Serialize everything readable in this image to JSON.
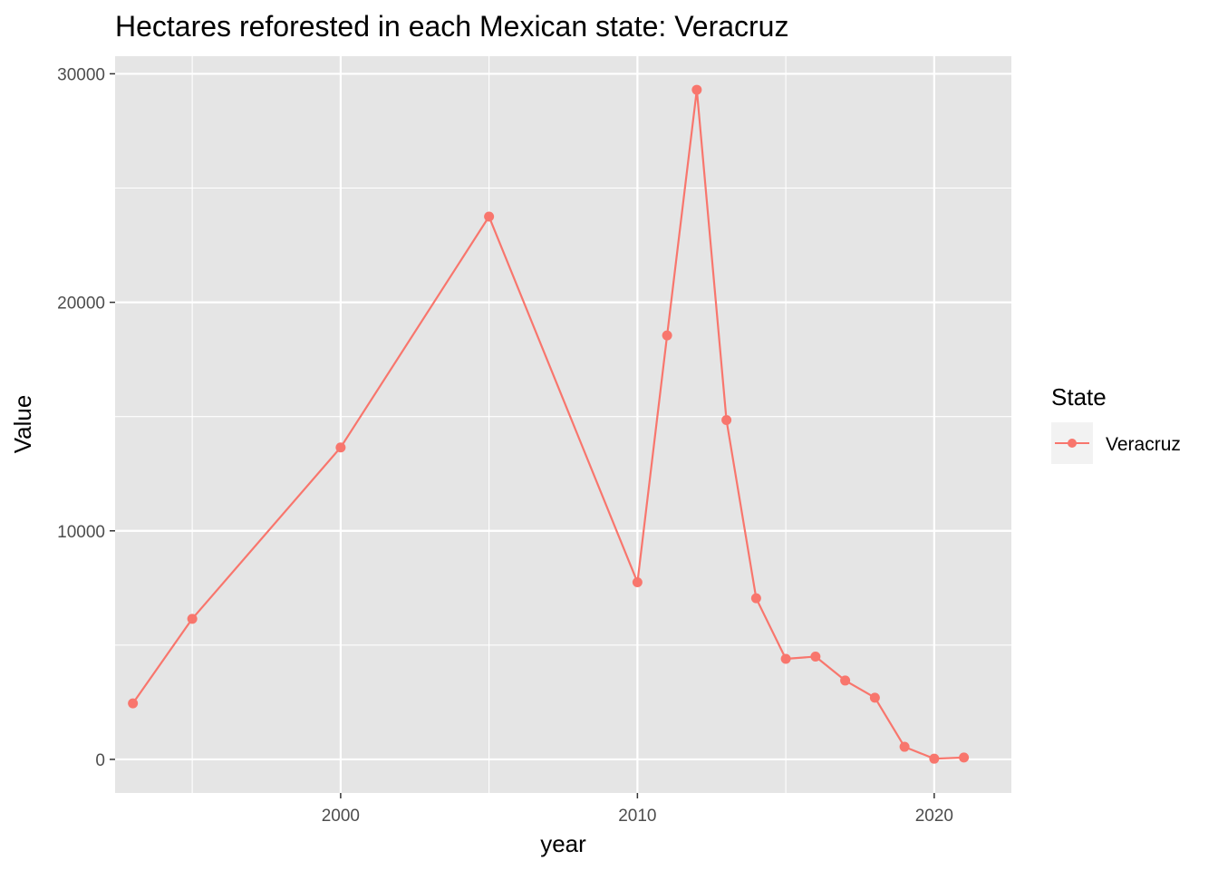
{
  "chart_data": {
    "type": "line",
    "title": "Hectares reforested in each Mexican state: Veracruz",
    "xlabel": "year",
    "ylabel": "Value",
    "xlim": [
      1992.4,
      2022.6
    ],
    "ylim": [
      -1470,
      30770
    ],
    "x_ticks": [
      2000,
      2010,
      2020
    ],
    "x_tick_labels": [
      "2000",
      "2010",
      "2020"
    ],
    "x_minor_ticks": [
      1995,
      2005,
      2015
    ],
    "y_ticks": [
      0,
      10000,
      20000,
      30000
    ],
    "y_tick_labels": [
      "0",
      "10000",
      "20000",
      "30000"
    ],
    "y_minor_ticks": [
      5000,
      15000,
      25000
    ],
    "grid": true,
    "legend": {
      "title": "State",
      "position": "right"
    },
    "series": [
      {
        "name": "Veracruz",
        "color": "#F8766D",
        "x": [
          1993,
          1995,
          2000,
          2005,
          2010,
          2011,
          2012,
          2013,
          2014,
          2015,
          2016,
          2017,
          2018,
          2019,
          2020,
          2021
        ],
        "y": [
          2450,
          6150,
          13650,
          23750,
          7750,
          18550,
          29300,
          14850,
          7050,
          4400,
          4500,
          3450,
          2700,
          550,
          30,
          80
        ]
      }
    ]
  },
  "colors": {
    "panel_background": "#E5E5E5",
    "grid_major": "#FFFFFF",
    "series": "#F8766D",
    "legend_key_background": "#F2F2F2"
  }
}
